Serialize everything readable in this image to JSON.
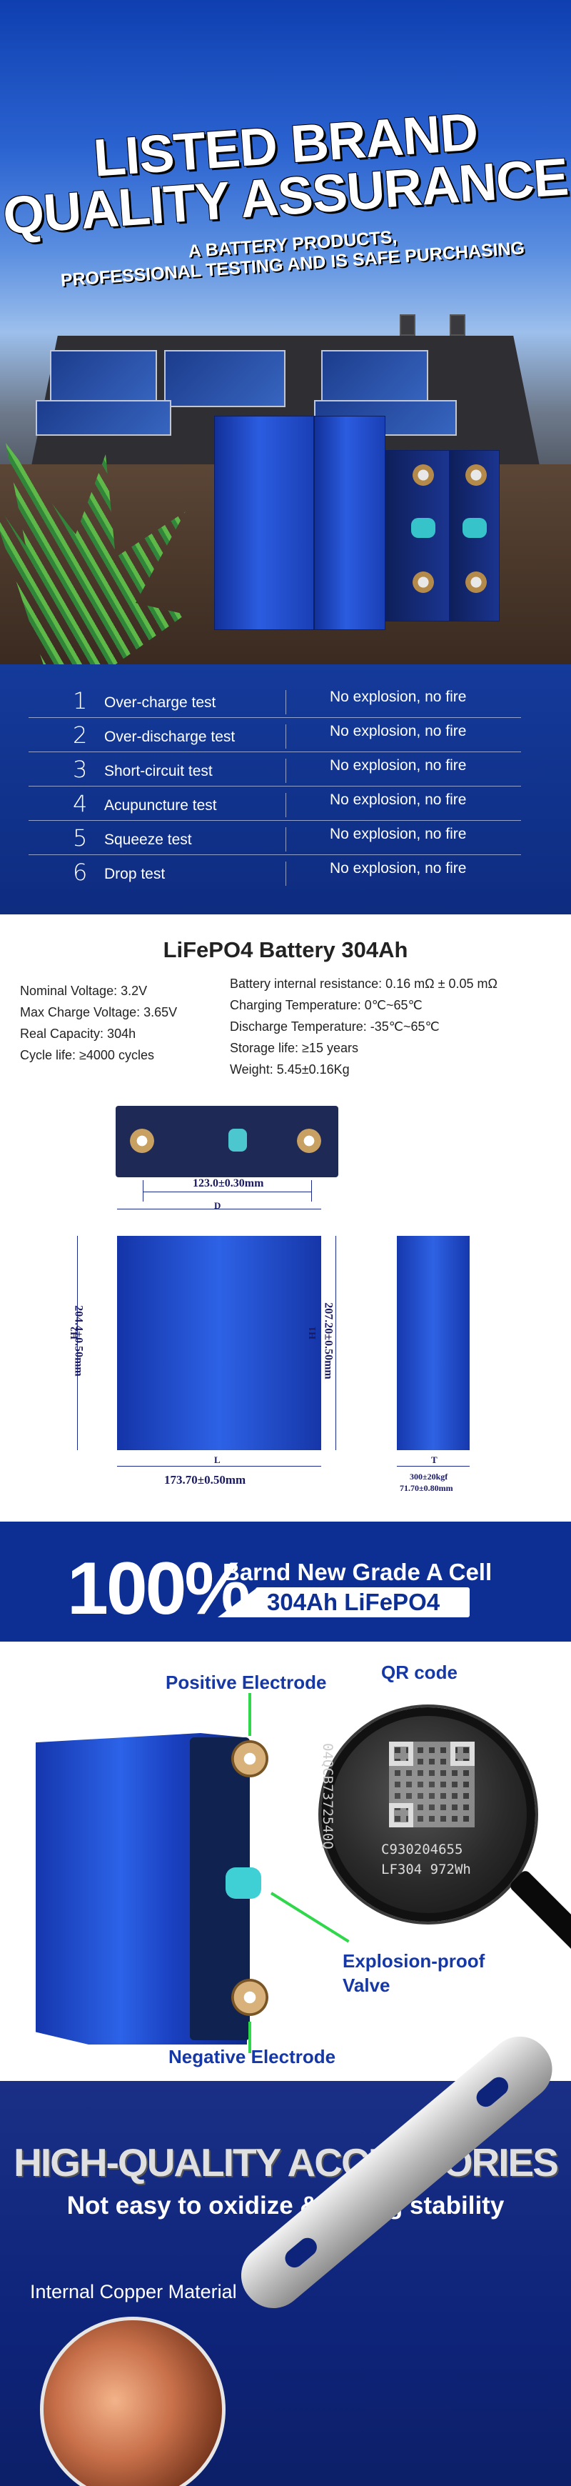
{
  "hero": {
    "title_line1": "LISTED BRAND",
    "title_line2": "QUALITY ASSURANCE",
    "subtitle_line1": "A BATTERY PRODUCTS,",
    "subtitle_line2": "PROFESSIONAL TESTING AND IS SAFE PURCHASING"
  },
  "tests": [
    {
      "num": "1",
      "name": "Over-charge test",
      "result": "No explosion, no fire"
    },
    {
      "num": "2",
      "name": "Over-discharge test",
      "result": "No explosion, no fire"
    },
    {
      "num": "3",
      "name": "Short-circuit test",
      "result": "No explosion, no fire"
    },
    {
      "num": "4",
      "name": "Acupuncture test",
      "result": "No explosion, no fire"
    },
    {
      "num": "5",
      "name": "Squeeze test",
      "result": "No explosion, no fire"
    },
    {
      "num": "6",
      "name": "Drop test",
      "result": "No explosion, no fire"
    }
  ],
  "spec": {
    "title": "LiFePO4 Battery 304Ah",
    "left": [
      "Nominal Voltage: 3.2V",
      "Max Charge Voltage: 3.65V",
      "Real Capacity: 304h",
      "Cycle life: ≥4000 cycles"
    ],
    "right": [
      "Battery internal resistance: 0.16 mΩ ± 0.05 mΩ",
      "Charging Temperature: 0℃~65℃",
      "Discharge Temperature: -35℃~65℃",
      "Storage life: ≥15 years",
      "Weight: 5.45±0.16Kg"
    ]
  },
  "drawing": {
    "top_width": "123.0±0.30mm",
    "top_letter": "D",
    "front_height_left": "204.4±0.50mm",
    "front_height_right": "207.20±0.50mm",
    "h_letter_left": "H2",
    "h_letter_right": "H1",
    "front_width": "173.70±0.50mm",
    "l_letter": "L",
    "t_letter": "T",
    "side_force": "300±20kgf",
    "side_thickness": "71.70±0.80mm"
  },
  "banner": {
    "big": "100%",
    "line1": "Barnd New Grade A Cell",
    "line2": "304Ah LiFePO4"
  },
  "product": {
    "positive": "Positive  Electrode",
    "qr": "QR code",
    "vent": "Explosion-proof",
    "vent2": "Valve",
    "negative": "Negative Electrode",
    "engrave1": "C930204655",
    "engrave2": "LF304  972Wh",
    "engrave_vertical": "04QCB7372540Q"
  },
  "accessories": {
    "title": "HIGH-QUALITY ACCESSORIES",
    "subtitle": "Not easy to oxidize & strong stability",
    "copper_label": "Internal Copper Material"
  },
  "colors": {
    "brand_blue": "#0d2f94",
    "callout_blue": "#1538a6",
    "pointer_green": "#2fd84a"
  }
}
